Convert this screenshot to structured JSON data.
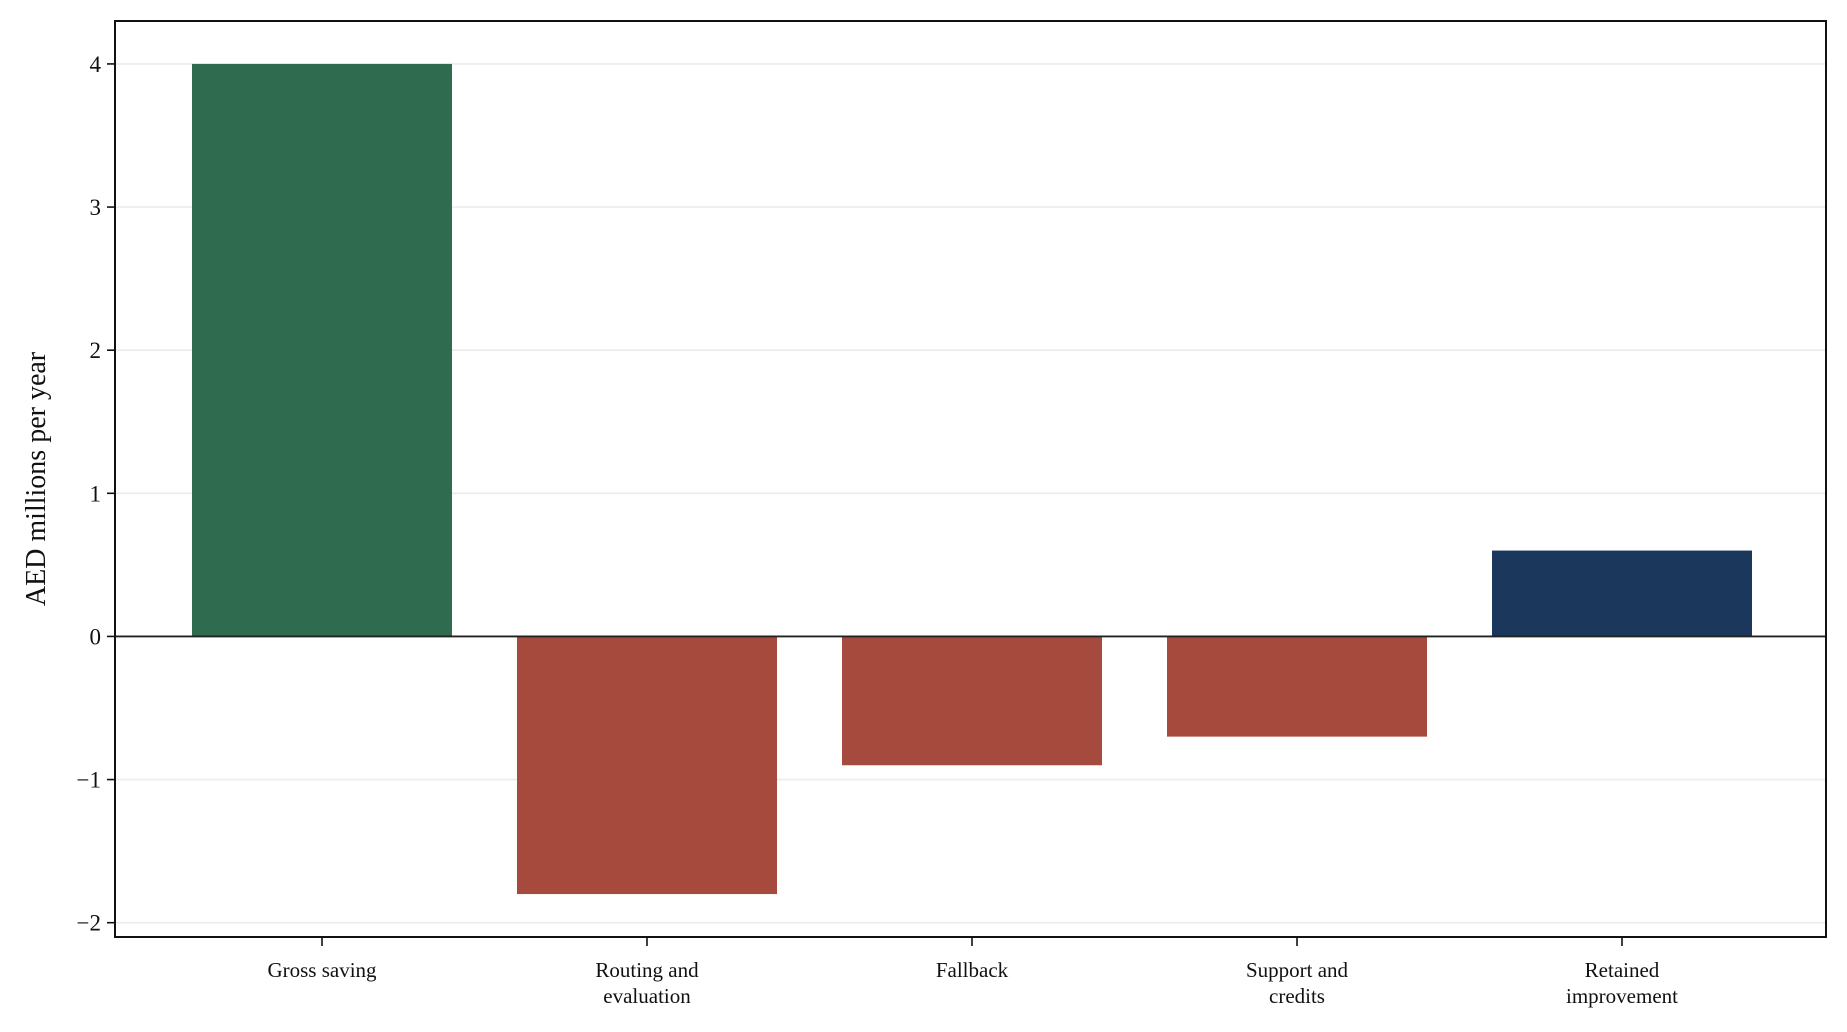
{
  "chart_data": {
    "type": "bar",
    "categories": [
      [
        "Gross saving"
      ],
      [
        "Routing and",
        "evaluation"
      ],
      [
        "Fallback"
      ],
      [
        "Support and",
        "credits"
      ],
      [
        "Retained",
        "improvement"
      ]
    ],
    "values": [
      4.0,
      -1.8,
      -0.9,
      -0.7,
      0.6
    ],
    "colors": [
      "#2e6b4f",
      "#a64a3d",
      "#a64a3d",
      "#a64a3d",
      "#1b375b"
    ],
    "title": "",
    "xlabel": "",
    "ylabel": "AED millions per year",
    "ylim": [
      -2.1,
      4.3
    ],
    "yticks": [
      -2,
      -1,
      0,
      1,
      2,
      3,
      4
    ],
    "ytick_labels": [
      "−2",
      "−1",
      "0",
      "1",
      "2",
      "3",
      "4"
    ],
    "grid": "horizontal",
    "legend": "none"
  }
}
